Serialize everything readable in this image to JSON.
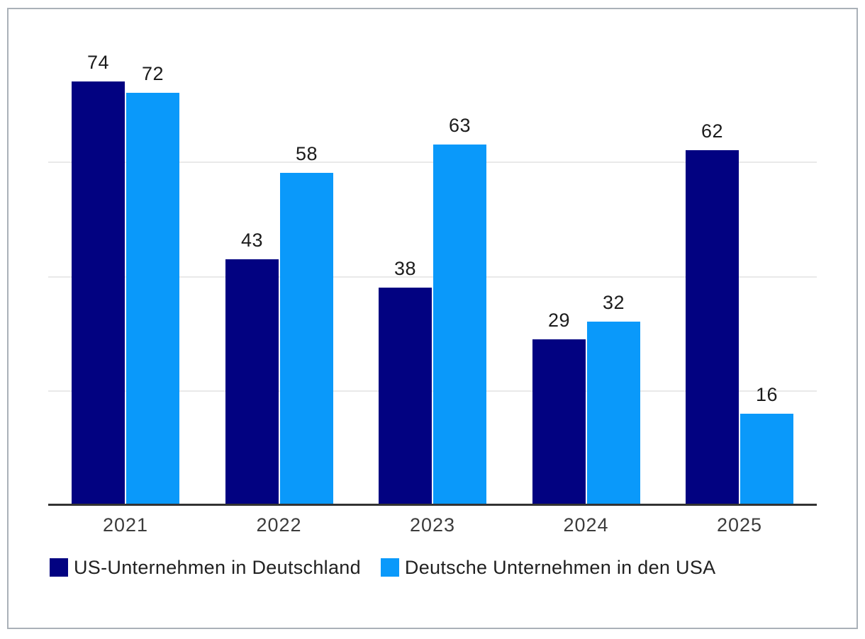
{
  "frame": {
    "border_color": "#aab1b8",
    "background": "#ffffff"
  },
  "chart_data": {
    "type": "bar",
    "title": "",
    "categories": [
      "2021",
      "2022",
      "2023",
      "2024",
      "2025"
    ],
    "series": [
      {
        "name": "US-Unternehmen in Deutschland",
        "color": "#020281",
        "values": [
          74,
          43,
          38,
          29,
          62
        ]
      },
      {
        "name": "Deutsche Unternehmen in den USA",
        "color": "#0a99fa",
        "values": [
          72,
          58,
          63,
          32,
          16
        ]
      }
    ],
    "ylim": [
      0,
      80
    ],
    "gridline_values": [
      20,
      40,
      60
    ],
    "grid": "horizontal",
    "grid_color": "#e9e9e9",
    "axis_color": "#333333",
    "value_labels_shown": true,
    "value_label_color": "#1b1b1b",
    "tick_label_color": "#3c3c3c",
    "legend_position": "bottom-left",
    "y_axis_labels_shown": false
  }
}
